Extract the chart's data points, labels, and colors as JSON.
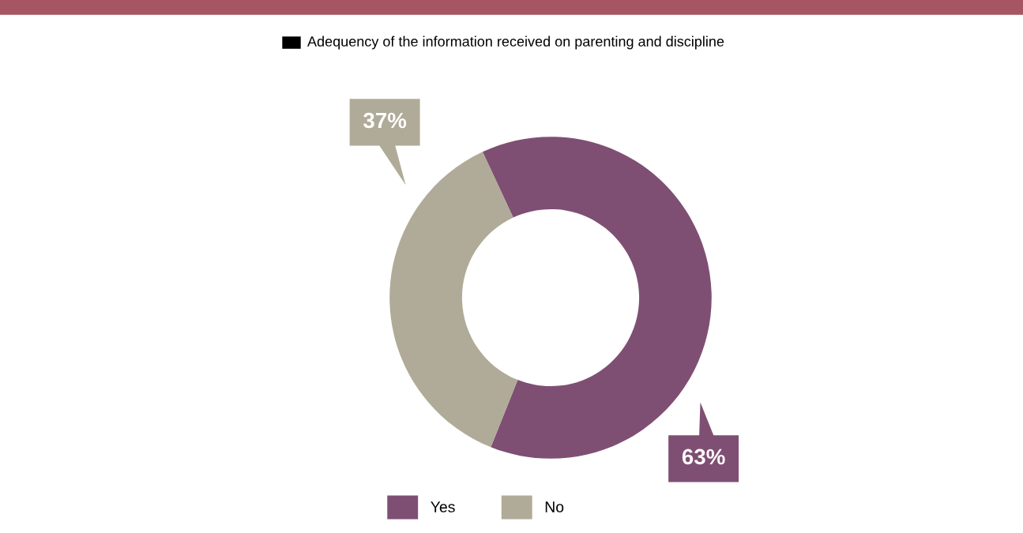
{
  "chart_data": {
    "type": "donut",
    "title": "Adequency of the information received on parenting and discipline",
    "categories": [
      "Yes",
      "No"
    ],
    "values": [
      63,
      37
    ],
    "colors": [
      "#7f4f73",
      "#b0aa98"
    ],
    "value_labels": [
      "63%",
      "37%"
    ],
    "legend": "bottom"
  }
}
